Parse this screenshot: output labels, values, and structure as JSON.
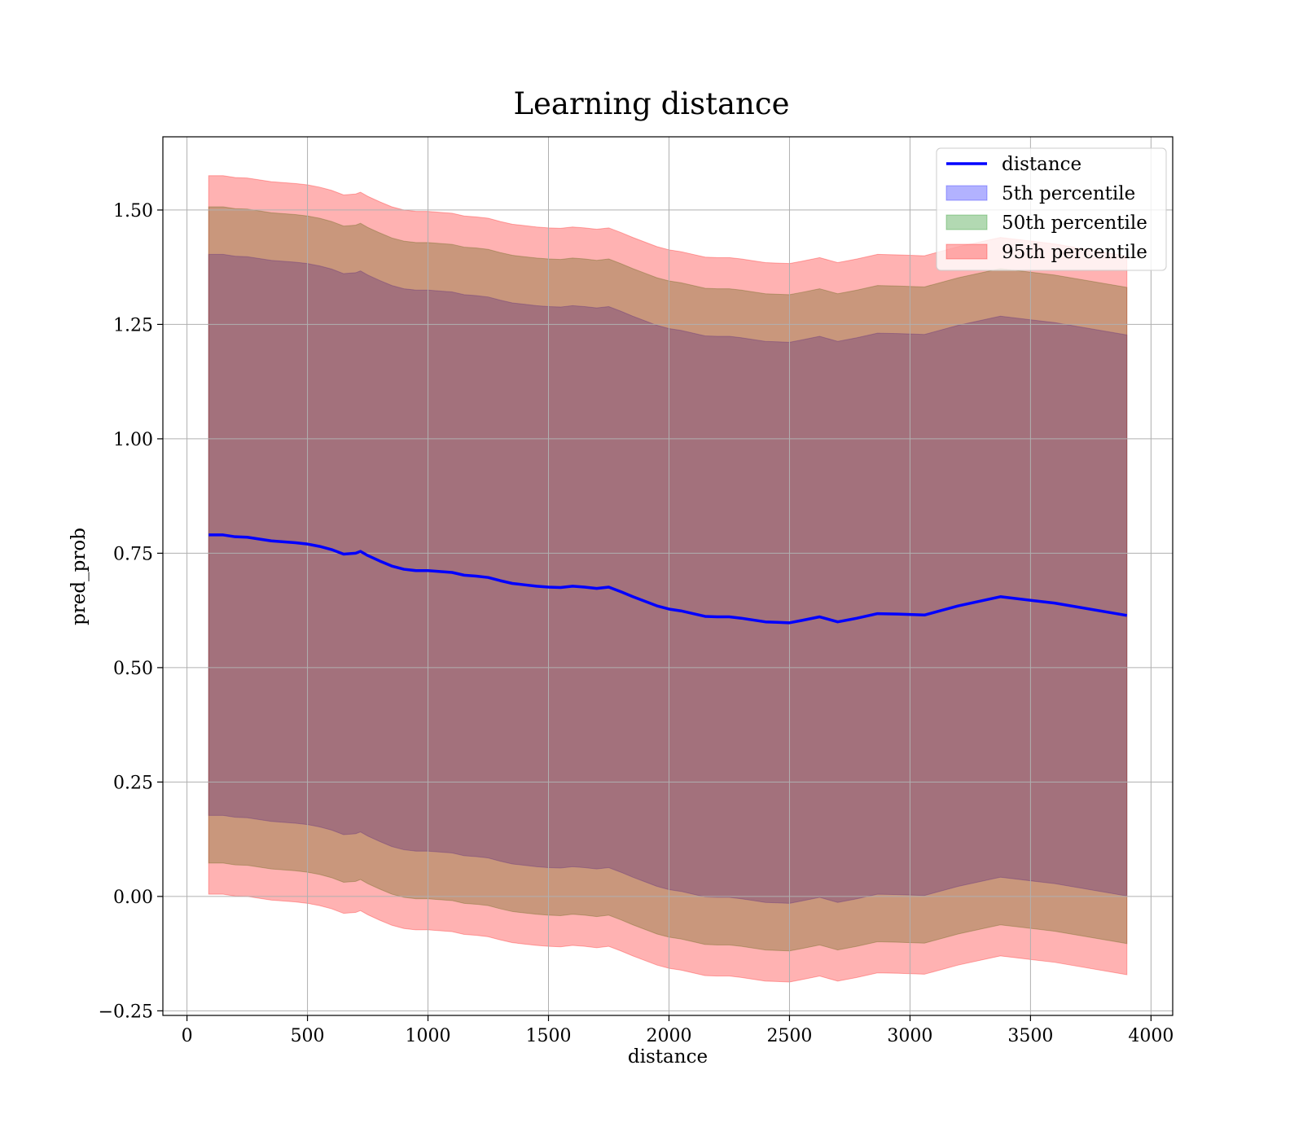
{
  "chart_data": {
    "type": "area",
    "title": "Learning distance",
    "xlabel": "distance",
    "ylabel": "pred_prob",
    "xlim": [
      -100,
      4090
    ],
    "ylim": [
      -0.26,
      1.66
    ],
    "xticks": [
      0,
      500,
      1000,
      1500,
      2000,
      2500,
      3000,
      3500,
      4000
    ],
    "xtick_labels": [
      "0",
      "500",
      "1000",
      "1500",
      "2000",
      "2500",
      "3000",
      "3500",
      "4000"
    ],
    "yticks": [
      -0.25,
      0.0,
      0.25,
      0.5,
      0.75,
      1.0,
      1.25,
      1.5
    ],
    "ytick_labels": [
      "−0.25",
      "0.00",
      "0.25",
      "0.50",
      "0.75",
      "1.00",
      "1.25",
      "1.50"
    ],
    "grid": true,
    "legend_position": "top-right",
    "legend": [
      {
        "label": "distance",
        "kind": "line",
        "color": "#0000ff"
      },
      {
        "label": "5th percentile",
        "kind": "patch",
        "color": "#0000ff"
      },
      {
        "label": "50th percentile",
        "kind": "patch",
        "color": "#008000"
      },
      {
        "label": "95th percentile",
        "kind": "patch",
        "color": "#ff0000"
      }
    ],
    "x": [
      90,
      150,
      200,
      250,
      300,
      350,
      400,
      450,
      500,
      550,
      600,
      650,
      700,
      720,
      750,
      800,
      850,
      900,
      950,
      1000,
      1050,
      1100,
      1150,
      1200,
      1250,
      1300,
      1350,
      1400,
      1450,
      1500,
      1550,
      1600,
      1650,
      1700,
      1750,
      1800,
      1850,
      1900,
      1950,
      2000,
      2050,
      2100,
      2150,
      2200,
      2250,
      2300,
      2350,
      2400,
      2450,
      2500,
      2550,
      2625,
      2700,
      2780,
      2865,
      2950,
      3060,
      3200,
      3375,
      3600,
      3900
    ],
    "series": [
      {
        "name": "distance",
        "values": [
          0.79,
          0.79,
          0.786,
          0.785,
          0.781,
          0.777,
          0.775,
          0.773,
          0.77,
          0.765,
          0.758,
          0.748,
          0.75,
          0.754,
          0.745,
          0.733,
          0.722,
          0.715,
          0.712,
          0.712,
          0.71,
          0.708,
          0.702,
          0.7,
          0.697,
          0.69,
          0.684,
          0.681,
          0.678,
          0.676,
          0.675,
          0.678,
          0.676,
          0.673,
          0.676,
          0.666,
          0.655,
          0.645,
          0.635,
          0.628,
          0.624,
          0.618,
          0.612,
          0.611,
          0.611,
          0.608,
          0.604,
          0.6,
          0.599,
          0.598,
          0.603,
          0.611,
          0.6,
          0.608,
          0.618,
          0.617,
          0.615,
          0.635,
          0.655,
          0.641,
          0.614
        ]
      },
      {
        "name": "5th percentile",
        "fill": "#0000ff",
        "offset_lower": -0.613,
        "offset_upper": 0.613
      },
      {
        "name": "50th percentile",
        "fill": "#008000",
        "offset_lower": -0.717,
        "offset_upper": 0.717
      },
      {
        "name": "95th percentile",
        "fill": "#ff0000",
        "offset_lower": -0.785,
        "offset_upper": 0.785
      }
    ]
  }
}
